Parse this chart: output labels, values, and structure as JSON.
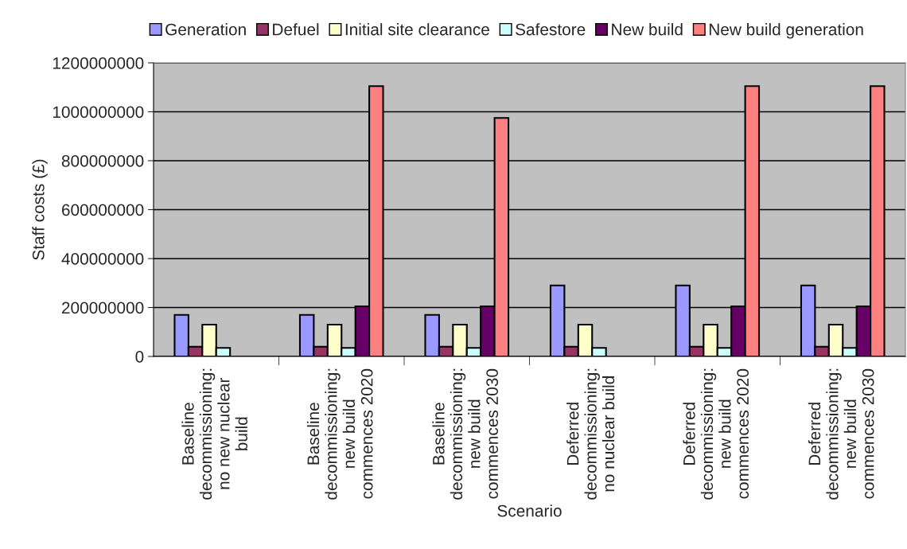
{
  "chart_data": {
    "type": "bar",
    "xlabel": "Scenario",
    "ylabel": "Staff costs (£)",
    "categories": [
      "Baseline\ndecommissioning:\nno new nuclear\nbuild",
      "Baseline\ndecommissioning:\nnew build\ncommences 2020",
      "Baseline\ndecommissioning:\nnew build\ncommences 2030",
      "Deferred\ndecommissioning:\nno nuclear build",
      "Deferred\ndecommissioning:\nnew build\ncommences 2020",
      "Deferred\ndecommissioning:\nnew build\ncommences 2030"
    ],
    "series": [
      {
        "name": "Generation",
        "color": "#9999ff",
        "values": [
          170000000,
          170000000,
          170000000,
          290000000,
          290000000,
          290000000
        ]
      },
      {
        "name": "Defuel",
        "color": "#993366",
        "values": [
          40000000,
          40000000,
          40000000,
          40000000,
          40000000,
          40000000
        ]
      },
      {
        "name": "Initial site clearance",
        "color": "#ffffcc",
        "values": [
          130000000,
          130000000,
          130000000,
          130000000,
          130000000,
          130000000
        ]
      },
      {
        "name": "Safestore",
        "color": "#ccffff",
        "values": [
          35000000,
          35000000,
          35000000,
          35000000,
          35000000,
          35000000
        ]
      },
      {
        "name": "New build",
        "color": "#660066",
        "values": [
          null,
          205000000,
          205000000,
          null,
          205000000,
          205000000
        ]
      },
      {
        "name": "New build generation",
        "color": "#ff8080",
        "values": [
          null,
          1105000000,
          975000000,
          null,
          1105000000,
          1105000000
        ]
      }
    ],
    "ylim": [
      0,
      1200000000
    ],
    "yticks": [
      0,
      200000000,
      400000000,
      600000000,
      800000000,
      1000000000,
      1200000000
    ],
    "grid": "y",
    "legend": "top"
  }
}
